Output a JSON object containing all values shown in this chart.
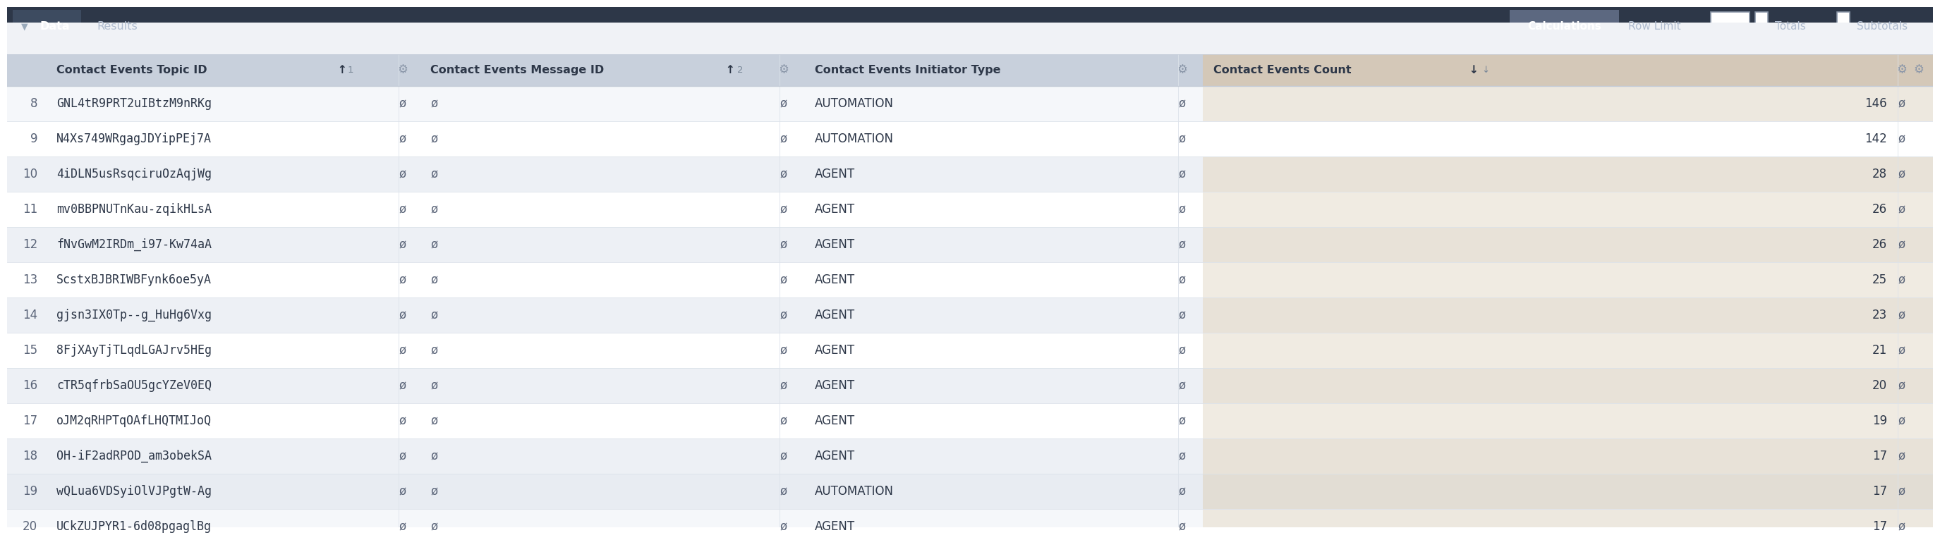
{
  "header_bg": "#2d3748",
  "col_header_bg": "#c8d0dc",
  "count_col_header_bg": "#d4c8b8",
  "row_colors": [
    "#f5f7fa",
    "#ffffff",
    "#edf0f5",
    "#ffffff",
    "#edf0f5",
    "#ffffff",
    "#edf0f5",
    "#ffffff",
    "#edf0f5",
    "#ffffff",
    "#edf0f5",
    "#e8ecf2",
    "#f5f7fa"
  ],
  "count_col_colors": [
    "#ede8df",
    "#ffffff",
    "#e8e2d8",
    "#f0ebe2",
    "#e8e2d8",
    "#f0ebe2",
    "#e8e2d8",
    "#f0ebe2",
    "#e8e2d8",
    "#f0ebe2",
    "#e8e2d8",
    "#e2ddd4",
    "#ede8df"
  ],
  "rows": [
    {
      "idx": 8,
      "topic_id": "GNL4tR9PRT2uIBtzM9nRKg",
      "initiator": "AUTOMATION",
      "count": 146
    },
    {
      "idx": 9,
      "topic_id": "N4Xs749WRgagJDYipPEj7A",
      "initiator": "AUTOMATION",
      "count": 142
    },
    {
      "idx": 10,
      "topic_id": "4iDLN5usRsqciruOzAqjWg",
      "initiator": "AGENT",
      "count": 28
    },
    {
      "idx": 11,
      "topic_id": "mv0BBPNUTnKau-zqikHLsA",
      "initiator": "AGENT",
      "count": 26
    },
    {
      "idx": 12,
      "topic_id": "fNvGwM2IRDm_i97-Kw74aA",
      "initiator": "AGENT",
      "count": 26
    },
    {
      "idx": 13,
      "topic_id": "ScstxBJBRIWBFynk6oe5yA",
      "initiator": "AGENT",
      "count": 25
    },
    {
      "idx": 14,
      "topic_id": "gjsn3IX0Tp--g_HuHg6Vxg",
      "initiator": "AGENT",
      "count": 23
    },
    {
      "idx": 15,
      "topic_id": "8FjXAyTjTLqdLGAJrv5HEg",
      "initiator": "AGENT",
      "count": 21
    },
    {
      "idx": 16,
      "topic_id": "cTR5qfrbSaOU5gcYZeV0EQ",
      "initiator": "AGENT",
      "count": 20
    },
    {
      "idx": 17,
      "topic_id": "oJM2qRHPTqOAfLHQTMIJoQ",
      "initiator": "AGENT",
      "count": 19
    },
    {
      "idx": 18,
      "topic_id": "OH-iF2adRPOD_am3obekSA",
      "initiator": "AGENT",
      "count": 17
    },
    {
      "idx": 19,
      "topic_id": "wQLua6VDSyiOlVJPgtW-Ag",
      "initiator": "AUTOMATION",
      "count": 17
    },
    {
      "idx": 20,
      "topic_id": "UCkZUJPYR1-6d08pgaglBg",
      "initiator": "AGENT",
      "count": 17
    }
  ],
  "text_dark": "#2d3748",
  "text_mid": "#5a6478",
  "gear_color": "#8a96a8",
  "divider_color": "#dce2ea",
  "header_divider": "#c4ccd8"
}
